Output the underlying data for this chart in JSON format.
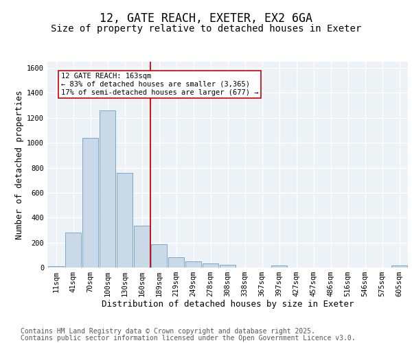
{
  "title1": "12, GATE REACH, EXETER, EX2 6GA",
  "title2": "Size of property relative to detached houses in Exeter",
  "xlabel": "Distribution of detached houses by size in Exeter",
  "ylabel": "Number of detached properties",
  "bin_labels": [
    "11sqm",
    "41sqm",
    "70sqm",
    "100sqm",
    "130sqm",
    "160sqm",
    "189sqm",
    "219sqm",
    "249sqm",
    "278sqm",
    "308sqm",
    "338sqm",
    "367sqm",
    "397sqm",
    "427sqm",
    "457sqm",
    "486sqm",
    "516sqm",
    "546sqm",
    "575sqm",
    "605sqm"
  ],
  "bar_heights": [
    10,
    280,
    1040,
    1260,
    760,
    335,
    185,
    80,
    50,
    32,
    20,
    0,
    0,
    15,
    0,
    0,
    0,
    0,
    0,
    0,
    15
  ],
  "bar_color": "#c9d9e8",
  "bar_edge_color": "#6a9ec5",
  "vline_x_idx": 5,
  "vline_color": "#cc0000",
  "annotation_text": "12 GATE REACH: 163sqm\n← 83% of detached houses are smaller (3,365)\n17% of semi-detached houses are larger (677) →",
  "annotation_box_color": "#ffffff",
  "annotation_box_edge": "#cc0000",
  "ylim": [
    0,
    1650
  ],
  "yticks": [
    0,
    200,
    400,
    600,
    800,
    1000,
    1200,
    1400,
    1600
  ],
  "footer_line1": "Contains HM Land Registry data © Crown copyright and database right 2025.",
  "footer_line2": "Contains public sector information licensed under the Open Government Licence v3.0.",
  "bg_color": "#edf2f7",
  "grid_color": "#ffffff",
  "title_fontsize": 12,
  "subtitle_fontsize": 10,
  "axis_label_fontsize": 9,
  "tick_fontsize": 7.5,
  "footer_fontsize": 7,
  "annot_fontsize": 7.5
}
